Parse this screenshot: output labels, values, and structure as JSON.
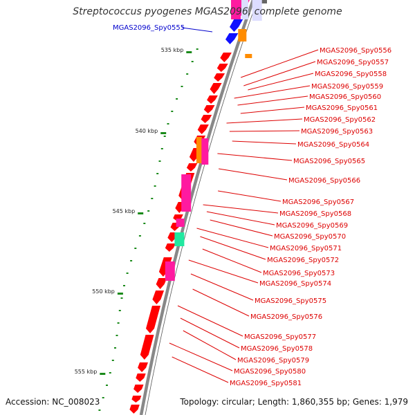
{
  "title": "Streptococcus pyogenes MGAS2096, complete genome",
  "footer": {
    "accession": "Accession: NC_008023",
    "summary": "Topology: circular; Length: 1,860,355 bp; Genes: 1,979"
  },
  "colors": {
    "backbone": "#888888",
    "gene_red": "#ff0000",
    "gene_pink": "#ff1aa0",
    "gene_orange": "#ff8c00",
    "gene_blue": "#1010ff",
    "gene_green": "#22e8a0",
    "gene_lavender": "#ddddff",
    "label_red": "#dd0000",
    "label_blue": "#0000cc",
    "tick_green": "#1a8a1a"
  },
  "ticks": [
    {
      "kbp": 535,
      "label": "535 kbp"
    },
    {
      "kbp": 540,
      "label": "540 kbp"
    },
    {
      "kbp": 545,
      "label": "545 kbp"
    },
    {
      "kbp": 550,
      "label": "550 kbp"
    },
    {
      "kbp": 555,
      "label": "555 kbp"
    }
  ],
  "left_label": {
    "text": "MGAS2096_Spy0555"
  },
  "gene_labels": [
    "MGAS2096_Spy0556",
    "MGAS2096_Spy0557",
    "MGAS2096_Spy0558",
    "MGAS2096_Spy0559",
    "MGAS2096_Spy0560",
    "MGAS2096_Spy0561",
    "MGAS2096_Spy0562",
    "MGAS2096_Spy0563",
    "MGAS2096_Spy0564",
    "MGAS2096_Spy0565",
    "MGAS2096_Spy0566",
    "MGAS2096_Spy0567",
    "MGAS2096_Spy0568",
    "MGAS2096_Spy0569",
    "MGAS2096_Spy0570",
    "MGAS2096_Spy0571",
    "MGAS2096_Spy0572",
    "MGAS2096_Spy0573",
    "MGAS2096_Spy0574",
    "MGAS2096_Spy0575",
    "MGAS2096_Spy0576",
    "MGAS2096_Spy0577",
    "MGAS2096_Spy0578",
    "MGAS2096_Spy0579",
    "MGAS2096_Spy0580",
    "MGAS2096_Spy0581"
  ]
}
